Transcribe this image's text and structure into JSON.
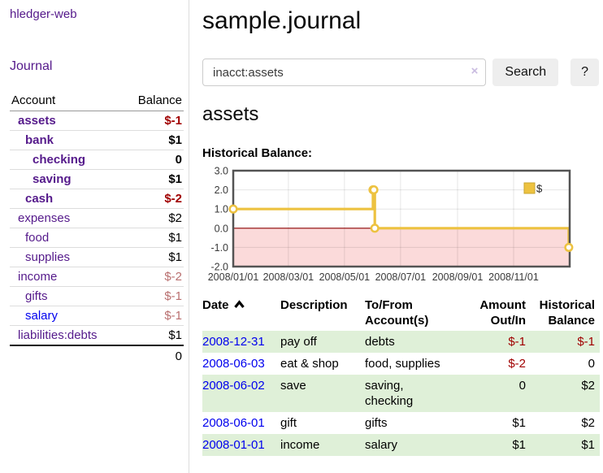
{
  "colors": {
    "link_purple": "#551a8b",
    "link_blue": "#0000ee",
    "negative_strong": "#a00000",
    "negative_muted": "#b96f6f",
    "row_green": "#dff0d8",
    "chart_gold": "#edc240",
    "chart_negative_fill": "#fbdada",
    "chart_zero_line": "#8b0000",
    "chart_border": "#545454"
  },
  "sidebar": {
    "app_title": "hledger-web",
    "nav": {
      "journal": "Journal"
    },
    "accounts": {
      "headers": {
        "account": "Account",
        "balance": "Balance"
      },
      "rows": [
        {
          "account": "assets",
          "balance": "$-1",
          "indent": 0,
          "bold": true,
          "link": "purple",
          "tone": "neg-strong"
        },
        {
          "account": "bank",
          "balance": "$1",
          "indent": 1,
          "bold": true,
          "link": "purple",
          "tone": "pos"
        },
        {
          "account": "checking",
          "balance": "0",
          "indent": 2,
          "bold": true,
          "link": "purple",
          "tone": "pos"
        },
        {
          "account": "saving",
          "balance": "$1",
          "indent": 2,
          "bold": true,
          "link": "purple",
          "tone": "pos"
        },
        {
          "account": "cash",
          "balance": "$-2",
          "indent": 1,
          "bold": true,
          "link": "purple",
          "tone": "neg-strong"
        },
        {
          "account": "expenses",
          "balance": "$2",
          "indent": 0,
          "bold": false,
          "link": "purple",
          "tone": "pos"
        },
        {
          "account": "food",
          "balance": "$1",
          "indent": 1,
          "bold": false,
          "link": "purple",
          "tone": "pos"
        },
        {
          "account": "supplies",
          "balance": "$1",
          "indent": 1,
          "bold": false,
          "link": "purple",
          "tone": "pos"
        },
        {
          "account": "income",
          "balance": "$-2",
          "indent": 0,
          "bold": false,
          "link": "purple",
          "tone": "neg-muted"
        },
        {
          "account": "gifts",
          "balance": "$-1",
          "indent": 1,
          "bold": false,
          "link": "purple",
          "tone": "neg-muted"
        },
        {
          "account": "salary",
          "balance": "$-1",
          "indent": 1,
          "bold": false,
          "link": "blue",
          "tone": "neg-muted"
        },
        {
          "account": "liabilities:debts",
          "balance": "$1",
          "indent": 0,
          "bold": false,
          "link": "purple",
          "tone": "pos"
        }
      ],
      "total": "0"
    }
  },
  "main": {
    "title": "sample.journal",
    "search": {
      "value": "inacct:assets",
      "clear_label": "×",
      "search_button": "Search",
      "help_button": "?"
    },
    "account_heading": "assets",
    "section_label": "Historical Balance:"
  },
  "chart_data": {
    "type": "line",
    "title": "Historical Balance",
    "step": true,
    "ylim": [
      -2.0,
      3.0
    ],
    "yticks": [
      3.0,
      2.0,
      1.0,
      0.0,
      -1.0,
      -2.0
    ],
    "x_range": [
      "2008-01-01",
      "2009-01-01"
    ],
    "xticks": [
      "2008/01/01",
      "2008/03/01",
      "2008/05/01",
      "2008/07/01",
      "2008/09/01",
      "2008/11/01"
    ],
    "grid": true,
    "legend_position": "top-right",
    "series": [
      {
        "name": "$",
        "color": "#edc240",
        "points": [
          {
            "x": "2008-01-01",
            "y": 1
          },
          {
            "x": "2008-06-01",
            "y": 2
          },
          {
            "x": "2008-06-02",
            "y": 2
          },
          {
            "x": "2008-06-03",
            "y": 0
          },
          {
            "x": "2008-12-31",
            "y": -1
          }
        ]
      }
    ]
  },
  "register": {
    "headers": [
      {
        "label": "Date",
        "sorted": "asc"
      },
      {
        "label": "Description"
      },
      {
        "label": "To/From Account(s)"
      },
      {
        "label": "Amount Out/In",
        "align": "right"
      },
      {
        "label": "Historical Balance",
        "align": "right"
      }
    ],
    "rows": [
      {
        "date": "2008-12-31",
        "description": "pay off",
        "accounts": "debts",
        "amount": "$-1",
        "amount_negative": true,
        "balance": "$-1",
        "balance_negative": true
      },
      {
        "date": "2008-06-03",
        "description": "eat & shop",
        "accounts": "food, supplies",
        "amount": "$-2",
        "amount_negative": true,
        "balance": "0",
        "balance_negative": false
      },
      {
        "date": "2008-06-02",
        "description": "save",
        "accounts": "saving,\nchecking",
        "amount": "0",
        "amount_negative": false,
        "balance": "$2",
        "balance_negative": false
      },
      {
        "date": "2008-06-01",
        "description": "gift",
        "accounts": "gifts",
        "amount": "$1",
        "amount_negative": false,
        "balance": "$2",
        "balance_negative": false
      },
      {
        "date": "2008-01-01",
        "description": "income",
        "accounts": "salary",
        "amount": "$1",
        "amount_negative": false,
        "balance": "$1",
        "balance_negative": false
      }
    ]
  }
}
